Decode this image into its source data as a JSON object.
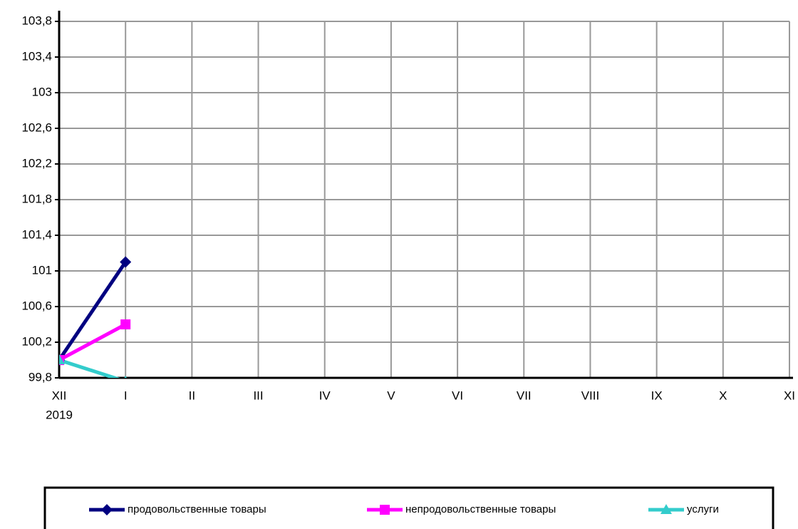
{
  "chart_data": {
    "type": "line",
    "categories": [
      "XII",
      "I",
      "II",
      "III",
      "IV",
      "V",
      "VI",
      "VII",
      "VIII",
      "IX",
      "X",
      "XI"
    ],
    "x_sublabel": "2019",
    "series": [
      {
        "name": "продовольственные товары",
        "color": "#000080",
        "marker": "diamond",
        "values": [
          100,
          101.1,
          null,
          null,
          null,
          null,
          null,
          null,
          null,
          null,
          null,
          null
        ]
      },
      {
        "name": "непродовольственные товары",
        "color": "#ff00ff",
        "marker": "square",
        "values": [
          100,
          100.4,
          null,
          null,
          null,
          null,
          null,
          null,
          null,
          null,
          null,
          null
        ]
      },
      {
        "name": "услуги",
        "color": "#33cccc",
        "marker": "triangle",
        "values": [
          100,
          99.76,
          null,
          null,
          null,
          null,
          null,
          null,
          null,
          null,
          null,
          null
        ]
      }
    ],
    "ylim": [
      99.8,
      103.8
    ],
    "yticks": [
      {
        "value": 99.8,
        "label": "99,8"
      },
      {
        "value": 100.2,
        "label": "100,2"
      },
      {
        "value": 100.6,
        "label": "100,6"
      },
      {
        "value": 101,
        "label": "101"
      },
      {
        "value": 101.4,
        "label": "101,4"
      },
      {
        "value": 101.8,
        "label": "101,8"
      },
      {
        "value": 102.2,
        "label": "102,2"
      },
      {
        "value": 102.6,
        "label": "102,6"
      },
      {
        "value": 103,
        "label": "103"
      },
      {
        "value": 103.4,
        "label": "103,4"
      },
      {
        "value": 103.8,
        "label": "103,8"
      }
    ],
    "grid": true,
    "legend": "bottom"
  }
}
